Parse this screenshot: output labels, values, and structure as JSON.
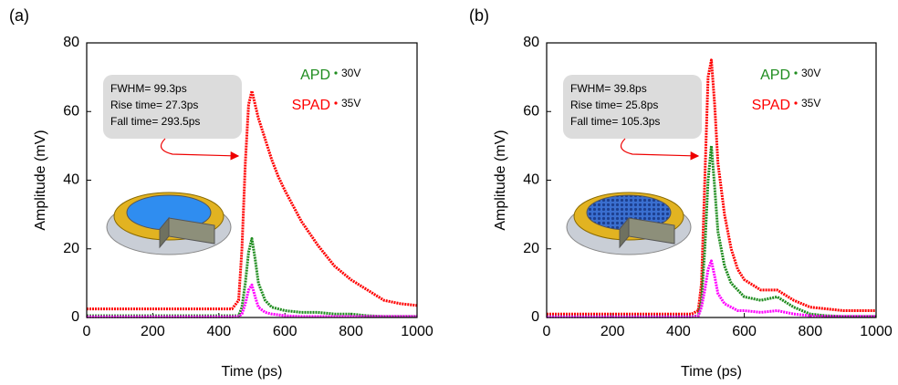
{
  "chart_data": [
    {
      "type": "line",
      "panel_label": "(a)",
      "xlabel": "Time (ps)",
      "ylabel": "Amplitude (mV)",
      "annotation": [
        "FWHM= 99.3ps",
        "Rise time= 27.3ps",
        "Fall time= 293.5ps"
      ],
      "x": [
        0,
        50,
        100,
        150,
        200,
        250,
        300,
        350,
        400,
        440,
        460,
        470,
        480,
        490,
        500,
        510,
        520,
        540,
        560,
        580,
        600,
        650,
        700,
        750,
        800,
        850,
        900,
        950,
        1000
      ],
      "series": [
        {
          "name": "SPAD",
          "voltage": "35V",
          "color": "#ff0000",
          "values": [
            2.5,
            2.5,
            2.5,
            2.5,
            2.5,
            2.5,
            2.5,
            2.5,
            2.5,
            2.5,
            5,
            20,
            45,
            62,
            66,
            62,
            58,
            52,
            46,
            41,
            37,
            28,
            21,
            15,
            11,
            8,
            5,
            4,
            3.5
          ]
        },
        {
          "name": "APD",
          "voltage": "30V",
          "color": "#1e8c1e",
          "values": [
            0.5,
            0.5,
            0.5,
            0.5,
            0.5,
            0.5,
            0.5,
            0.5,
            0.5,
            0.5,
            0.5,
            3,
            10,
            19,
            23,
            17,
            10,
            5,
            3,
            2.5,
            2,
            1.5,
            1.5,
            1,
            1,
            0.5,
            0.3,
            0.3,
            0.3
          ]
        },
        {
          "color": "#ff00ff",
          "values": [
            0.2,
            0.2,
            0.2,
            0.2,
            0.2,
            0.2,
            0.2,
            0.2,
            0.2,
            0.2,
            0.3,
            1,
            4,
            8,
            9.5,
            6,
            3,
            1.5,
            1,
            0.8,
            0.5,
            0.3,
            0.3,
            0.3,
            0.3,
            0.3,
            0.3,
            0.3,
            0.3
          ]
        }
      ],
      "xlim": [
        0,
        1000
      ],
      "ylim": [
        0,
        80
      ],
      "xticks": [
        0,
        200,
        400,
        600,
        800,
        1000
      ],
      "yticks": [
        0,
        20,
        40,
        60,
        80
      ]
    },
    {
      "type": "line",
      "panel_label": "(b)",
      "xlabel": "Time (ps)",
      "ylabel": "Amplitude (mV)",
      "annotation": [
        "FWHM= 39.8ps",
        "Rise time= 25.8ps",
        "Fall time= 105.3ps"
      ],
      "x": [
        0,
        50,
        100,
        150,
        200,
        250,
        300,
        350,
        400,
        440,
        460,
        470,
        480,
        490,
        500,
        510,
        520,
        540,
        560,
        580,
        600,
        650,
        700,
        750,
        800,
        850,
        900,
        950,
        1000
      ],
      "series": [
        {
          "name": "SPAD",
          "voltage": "35V",
          "color": "#ff0000",
          "values": [
            1,
            1,
            1,
            1,
            1,
            1,
            1,
            1,
            1,
            1,
            2,
            10,
            40,
            70,
            75,
            62,
            45,
            30,
            20,
            14,
            11,
            8,
            8,
            5,
            3,
            2.5,
            2,
            2,
            2
          ]
        },
        {
          "name": "APD",
          "voltage": "30V",
          "color": "#1e8c1e",
          "values": [
            0.3,
            0.3,
            0.3,
            0.3,
            0.3,
            0.3,
            0.3,
            0.3,
            0.3,
            0.3,
            0.5,
            5,
            20,
            40,
            50,
            38,
            25,
            15,
            10,
            8,
            6,
            5,
            6,
            3,
            1,
            0.5,
            0.3,
            0.3,
            0.3
          ]
        },
        {
          "color": "#ff00ff",
          "values": [
            0.2,
            0.2,
            0.2,
            0.2,
            0.2,
            0.2,
            0.2,
            0.2,
            0.2,
            0.2,
            0.4,
            3,
            8,
            14,
            16.5,
            12,
            7,
            4,
            3,
            2,
            2,
            1.5,
            2,
            1,
            0.5,
            0.3,
            0.3,
            0.3,
            0.3
          ]
        }
      ],
      "xlim": [
        0,
        1000
      ],
      "ylim": [
        0,
        80
      ],
      "xticks": [
        0,
        200,
        400,
        600,
        800,
        1000
      ],
      "yticks": [
        0,
        20,
        40,
        60,
        80
      ]
    }
  ]
}
